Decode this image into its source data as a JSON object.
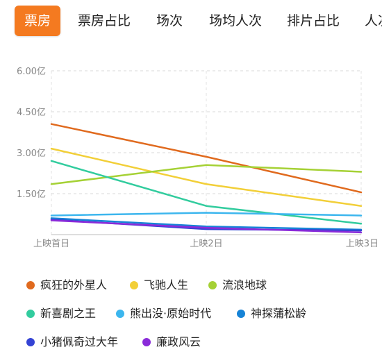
{
  "tabs": [
    {
      "label": "票房",
      "active": true
    },
    {
      "label": "票房占比",
      "active": false
    },
    {
      "label": "场次",
      "active": false
    },
    {
      "label": "场均人次",
      "active": false
    },
    {
      "label": "排片占比",
      "active": false
    },
    {
      "label": "人次",
      "active": false
    }
  ],
  "chart_data": {
    "type": "line",
    "categories": [
      "上映首日",
      "上映2日",
      "上映3日"
    ],
    "y_tick_labels": [
      "6.00亿",
      "4.50亿",
      "3.00亿",
      "1.50亿"
    ],
    "y_ticks": [
      6.0,
      4.5,
      3.0,
      1.5
    ],
    "ylim": [
      0,
      6.0
    ],
    "grid": true,
    "legend_position": "bottom",
    "series": [
      {
        "name": "疯狂的外星人",
        "color": "#e06a1e",
        "values": [
          4.05,
          2.85,
          1.55
        ]
      },
      {
        "name": "飞驰人生",
        "color": "#f2cf38",
        "values": [
          3.15,
          1.85,
          1.05
        ]
      },
      {
        "name": "流浪地球",
        "color": "#a5d135",
        "values": [
          1.85,
          2.55,
          2.3
        ]
      },
      {
        "name": "新喜剧之王",
        "color": "#32cc9e",
        "values": [
          2.7,
          1.05,
          0.4
        ]
      },
      {
        "name": "熊出没·原始时代",
        "color": "#3cb6ee",
        "values": [
          0.7,
          0.8,
          0.7
        ]
      },
      {
        "name": "神探蒲松龄",
        "color": "#1683d6",
        "values": [
          0.6,
          0.3,
          0.18
        ]
      },
      {
        "name": "小猪佩奇过大年",
        "color": "#3443d4",
        "values": [
          0.55,
          0.2,
          0.15
        ]
      },
      {
        "name": "廉政风云",
        "color": "#8a2bd9",
        "values": [
          0.52,
          0.25,
          0.08
        ]
      }
    ]
  }
}
